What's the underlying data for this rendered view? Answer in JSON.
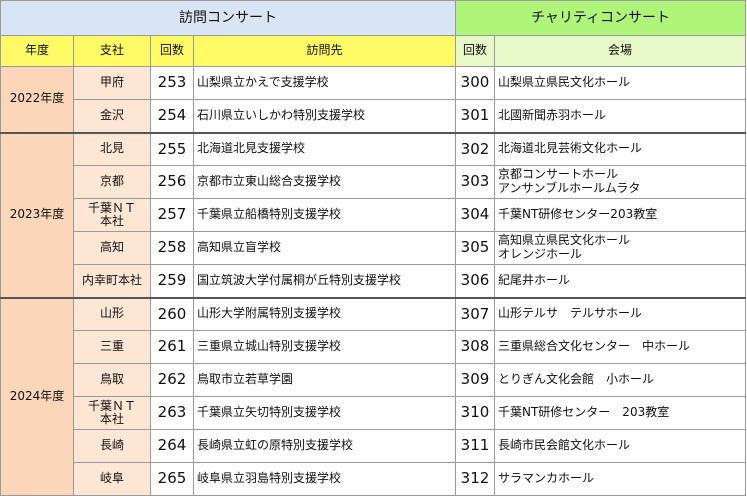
{
  "headers": {
    "visit_concert": "訪問コンサート",
    "charity_concert": "チャリティコンサート",
    "year": "年度",
    "branch": "支社",
    "count": "回数",
    "visit_place": "訪問先",
    "count2": "回数",
    "venue": "会場"
  },
  "years": [
    {
      "label": "2022年度",
      "rows": [
        {
          "branch": "甲府",
          "no": "253",
          "visit": "山梨県立かえで支援学校",
          "cno": "300",
          "venue": "山梨県立県民文化ホール"
        },
        {
          "branch": "金沢",
          "no": "254",
          "visit": "石川県立いしかわ特別支援学校",
          "cno": "301",
          "venue": "北國新聞赤羽ホール"
        }
      ]
    },
    {
      "label": "2023年度",
      "rows": [
        {
          "branch": "北見",
          "no": "255",
          "visit": "北海道北見支援学校",
          "cno": "302",
          "venue": "北海道北見芸術文化ホール"
        },
        {
          "branch": "京都",
          "no": "256",
          "visit": "京都市立東山総合支援学校",
          "cno": "303",
          "venue": "京都コンサートホール\nアンサンブルホールムラタ"
        },
        {
          "branch": "千葉ＮＴ\n本社",
          "no": "257",
          "visit": "千葉県立船橋特別支援学校",
          "cno": "304",
          "venue": "千葉NT研修センター203教室"
        },
        {
          "branch": "高知",
          "no": "258",
          "visit": "高知県立盲学校",
          "cno": "305",
          "venue": "高知県立県民文化ホール\nオレンジホール"
        },
        {
          "branch": "内幸町本社",
          "no": "259",
          "visit": "国立筑波大学付属桐が丘特別支援学校",
          "cno": "306",
          "venue": "紀尾井ホール"
        }
      ]
    },
    {
      "label": "2024年度",
      "rows": [
        {
          "branch": "山形",
          "no": "260",
          "visit": "山形大学附属特別支援学校",
          "cno": "307",
          "venue": "山形テルサ　テルサホール"
        },
        {
          "branch": "三重",
          "no": "261",
          "visit": "三重県立城山特別支援学校",
          "cno": "308",
          "venue": "三重県総合文化センター　中ホール"
        },
        {
          "branch": "鳥取",
          "no": "262",
          "visit": "鳥取市立若草学園",
          "cno": "309",
          "venue": "とりぎん文化会館　小ホール"
        },
        {
          "branch": "千葉ＮＴ\n本社",
          "no": "263",
          "visit": "千葉県立矢切特別支援学校",
          "cno": "310",
          "venue": "千葉NT研修センター　203教室"
        },
        {
          "branch": "長崎",
          "no": "264",
          "visit": "長崎県立虹の原特別支援学校",
          "cno": "311",
          "venue": "長崎市民会館文化ホール"
        },
        {
          "branch": "岐阜",
          "no": "265",
          "visit": "岐阜県立羽島特別支援学校",
          "cno": "312",
          "venue": "サラマンカホール"
        }
      ]
    }
  ]
}
